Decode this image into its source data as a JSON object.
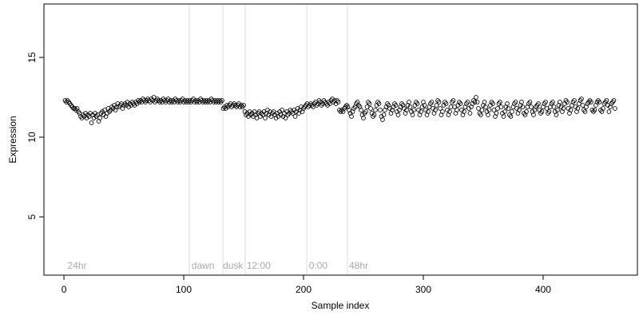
{
  "chart_data": {
    "type": "scatter",
    "xlabel": "Sample index",
    "ylabel": "Expression",
    "xlim": [
      -16.7,
      478.7
    ],
    "ylim": [
      1.35,
      18.35
    ],
    "xticks": [
      0,
      100,
      200,
      300,
      400
    ],
    "yticks": [
      5,
      10,
      15
    ],
    "point_color": "#000000",
    "vline_color": "#dddddd",
    "annotation_color": "#aaaaaa",
    "vlines": [
      104.7,
      132.7,
      151.3,
      202.7,
      236.7
    ],
    "annotations": [
      {
        "text": "24hr",
        "x": 3,
        "y": 1.95
      },
      {
        "text": "dawn",
        "x": 106.5,
        "y": 1.95
      },
      {
        "text": "dusk",
        "x": 132.7,
        "y": 1.95
      },
      {
        "text": "12:00",
        "x": 152.5,
        "y": 1.95
      },
      {
        "text": "0:00",
        "x": 204.5,
        "y": 1.95
      },
      {
        "text": "48hr",
        "x": 238,
        "y": 1.95
      }
    ],
    "x": [
      1,
      2,
      3,
      4,
      5,
      6,
      7,
      8,
      9,
      10,
      11,
      12,
      13,
      14,
      15,
      16,
      17,
      18,
      19,
      20,
      21,
      22,
      23,
      24,
      25,
      26,
      27,
      28,
      29,
      30,
      31,
      32,
      33,
      34,
      35,
      36,
      37,
      38,
      39,
      40,
      41,
      42,
      43,
      44,
      45,
      46,
      47,
      48,
      49,
      50,
      51,
      52,
      53,
      54,
      55,
      56,
      57,
      58,
      59,
      60,
      61,
      62,
      63,
      64,
      65,
      66,
      67,
      68,
      69,
      70,
      71,
      72,
      73,
      74,
      75,
      76,
      77,
      78,
      79,
      80,
      81,
      82,
      83,
      84,
      85,
      86,
      87,
      88,
      89,
      90,
      91,
      92,
      93,
      94,
      95,
      96,
      97,
      98,
      99,
      100,
      101,
      102,
      103,
      104,
      105,
      106,
      107,
      108,
      109,
      110,
      111,
      112,
      113,
      114,
      115,
      116,
      117,
      118,
      119,
      120,
      121,
      122,
      123,
      124,
      125,
      126,
      127,
      128,
      129,
      130,
      131,
      132,
      133,
      134,
      135,
      136,
      137,
      138,
      139,
      140,
      141,
      142,
      143,
      144,
      145,
      146,
      147,
      148,
      149,
      150,
      151,
      152,
      153,
      154,
      155,
      156,
      157,
      158,
      159,
      160,
      161,
      162,
      163,
      164,
      165,
      166,
      167,
      168,
      169,
      170,
      171,
      172,
      173,
      174,
      175,
      176,
      177,
      178,
      179,
      180,
      181,
      182,
      183,
      184,
      185,
      186,
      187,
      188,
      189,
      190,
      191,
      192,
      193,
      194,
      195,
      196,
      197,
      198,
      199,
      200,
      201,
      202,
      203,
      204,
      205,
      206,
      207,
      208,
      209,
      210,
      211,
      212,
      213,
      214,
      215,
      216,
      217,
      218,
      219,
      220,
      221,
      222,
      223,
      224,
      225,
      226,
      227,
      228,
      229,
      230,
      231,
      232,
      233,
      234,
      235,
      236,
      237,
      238,
      239,
      240,
      241,
      242,
      243,
      244,
      245,
      246,
      247,
      248,
      249,
      250,
      251,
      252,
      253,
      254,
      255,
      256,
      257,
      258,
      259,
      260,
      261,
      262,
      263,
      264,
      265,
      266,
      267,
      268,
      269,
      270,
      271,
      272,
      273,
      274,
      275,
      276,
      277,
      278,
      279,
      280,
      281,
      282,
      283,
      284,
      285,
      286,
      287,
      288,
      289,
      290,
      291,
      292,
      293,
      294,
      295,
      296,
      297,
      298,
      299,
      300,
      301,
      302,
      303,
      304,
      305,
      306,
      307,
      308,
      309,
      310,
      311,
      312,
      313,
      314,
      315,
      316,
      317,
      318,
      319,
      320,
      321,
      322,
      323,
      324,
      325,
      326,
      327,
      328,
      329,
      330,
      331,
      332,
      333,
      334,
      335,
      336,
      337,
      338,
      339,
      340,
      341,
      342,
      343,
      344,
      345,
      346,
      347,
      348,
      349,
      350,
      351,
      352,
      353,
      354,
      355,
      356,
      357,
      358,
      359,
      360,
      361,
      362,
      363,
      364,
      365,
      366,
      367,
      368,
      369,
      370,
      371,
      372,
      373,
      374,
      375,
      376,
      377,
      378,
      379,
      380,
      381,
      382,
      383,
      384,
      385,
      386,
      387,
      388,
      389,
      390,
      391,
      392,
      393,
      394,
      395,
      396,
      397,
      398,
      399,
      400,
      401,
      402,
      403,
      404,
      405,
      406,
      407,
      408,
      409,
      410,
      411,
      412,
      413,
      414,
      415,
      416,
      417,
      418,
      419,
      420,
      421,
      422,
      423,
      424,
      425,
      426,
      427,
      428,
      429,
      430,
      431,
      432,
      433,
      434,
      435,
      436,
      437,
      438,
      439,
      440,
      441,
      442,
      443,
      444,
      445,
      446,
      447,
      448,
      449,
      450,
      451,
      452,
      453,
      454,
      455,
      456,
      457,
      458,
      459,
      460
    ],
    "values": [
      12.3,
      12.2,
      12.3,
      12.2,
      12.1,
      12.0,
      11.9,
      11.8,
      11.8,
      11.7,
      11.8,
      11.6,
      11.5,
      11.3,
      11.2,
      11.4,
      11.3,
      11.5,
      11.2,
      11.4,
      11.3,
      11.5,
      10.9,
      11.4,
      11.2,
      11.5,
      11.3,
      11.4,
      11.0,
      11.2,
      11.5,
      11.6,
      11.4,
      11.7,
      11.3,
      11.5,
      11.8,
      11.6,
      11.7,
      11.9,
      11.8,
      12.0,
      11.7,
      11.9,
      12.1,
      11.9,
      12.0,
      12.1,
      11.8,
      12.0,
      12.1,
      12.0,
      12.2,
      11.9,
      12.1,
      12.0,
      12.2,
      12.1,
      12.0,
      12.2,
      12.1,
      12.3,
      12.2,
      12.3,
      12.2,
      12.4,
      12.3,
      12.2,
      12.3,
      12.4,
      12.3,
      12.2,
      12.4,
      12.3,
      12.5,
      12.2,
      12.3,
      12.4,
      12.3,
      12.2,
      12.3,
      12.2,
      12.4,
      12.3,
      12.2,
      12.3,
      12.4,
      12.2,
      12.3,
      12.2,
      12.3,
      12.2,
      12.4,
      12.3,
      12.2,
      12.3,
      12.2,
      12.3,
      12.4,
      12.2,
      12.3,
      12.2,
      12.3,
      12.2,
      12.3,
      12.2,
      12.3,
      12.4,
      12.2,
      12.3,
      12.2,
      12.3,
      12.2,
      12.4,
      12.3,
      12.2,
      12.3,
      12.2,
      12.3,
      12.2,
      12.3,
      12.2,
      12.4,
      12.3,
      12.2,
      12.3,
      12.2,
      12.3,
      12.2,
      12.3,
      12.2,
      12.3,
      11.8,
      11.9,
      11.8,
      12.0,
      11.9,
      12.0,
      12.1,
      11.9,
      12.0,
      12.1,
      12.0,
      11.9,
      12.0,
      12.1,
      11.9,
      12.0,
      11.9,
      12.0,
      11.6,
      11.4,
      11.5,
      11.3,
      11.6,
      11.4,
      11.5,
      11.3,
      11.6,
      11.4,
      11.2,
      11.5,
      11.6,
      11.3,
      11.5,
      11.4,
      11.6,
      11.2,
      11.5,
      11.7,
      11.4,
      11.6,
      11.3,
      11.5,
      11.6,
      11.4,
      11.2,
      11.5,
      11.3,
      11.6,
      11.4,
      11.7,
      11.3,
      11.5,
      11.2,
      11.6,
      11.4,
      11.5,
      11.7,
      11.6,
      11.5,
      11.7,
      11.3,
      11.6,
      11.8,
      11.5,
      11.7,
      11.9,
      11.6,
      11.8,
      11.9,
      12.0,
      12.1,
      11.9,
      12.0,
      12.1,
      12.0,
      11.9,
      12.1,
      12.2,
      12.0,
      12.1,
      12.3,
      12.2,
      12.0,
      12.1,
      12.3,
      12.2,
      12.1,
      12.0,
      12.2,
      12.1,
      12.3,
      12.4,
      12.2,
      12.3,
      12.1,
      12.3,
      12.2,
      11.7,
      11.6,
      11.7,
      11.6,
      11.8,
      11.9,
      12.0,
      11.9,
      11.7,
      11.5,
      11.3,
      11.6,
      11.8,
      11.9,
      12.1,
      12.2,
      12.0,
      11.9,
      11.7,
      11.4,
      11.2,
      11.5,
      11.6,
      11.9,
      12.2,
      12.1,
      11.8,
      11.5,
      11.3,
      11.4,
      11.7,
      12.0,
      12.2,
      12.1,
      11.7,
      11.3,
      11.1,
      11.4,
      11.7,
      11.9,
      12.1,
      12.0,
      11.8,
      11.5,
      11.7,
      11.9,
      12.1,
      12.0,
      11.6,
      11.4,
      11.7,
      11.9,
      12.1,
      12.0,
      11.8,
      11.5,
      11.7,
      12.0,
      12.2,
      11.9,
      11.6,
      11.4,
      11.7,
      12.0,
      12.2,
      12.1,
      11.7,
      11.4,
      11.6,
      11.9,
      12.2,
      12.0,
      11.7,
      11.4,
      11.6,
      11.9,
      12.1,
      12.2,
      11.8,
      11.5,
      11.7,
      12.0,
      12.3,
      12.2,
      11.8,
      11.4,
      11.6,
      12.0,
      12.2,
      12.1,
      11.7,
      11.4,
      11.6,
      11.9,
      12.2,
      12.3,
      11.9,
      11.5,
      11.7,
      12.0,
      12.2,
      12.1,
      11.7,
      11.4,
      11.6,
      11.9,
      12.1,
      12.2,
      11.8,
      11.5,
      11.9,
      12.1,
      12.3,
      12.2,
      12.5,
      12.2,
      11.8,
      11.5,
      11.4,
      11.7,
      12.0,
      12.2,
      11.9,
      11.6,
      11.4,
      11.7,
      12.0,
      12.2,
      12.1,
      11.7,
      11.3,
      11.5,
      11.8,
      12.1,
      12.2,
      11.9,
      11.5,
      11.3,
      11.6,
      11.9,
      12.1,
      11.8,
      11.4,
      11.3,
      11.6,
      11.9,
      12.1,
      12.2,
      11.8,
      11.5,
      11.7,
      12.0,
      12.2,
      11.9,
      11.5,
      11.4,
      11.6,
      11.9,
      12.1,
      12.2,
      11.9,
      11.6,
      11.4,
      11.7,
      11.9,
      12.0,
      12.1,
      11.7,
      11.5,
      11.6,
      11.9,
      12.1,
      12.2,
      11.8,
      11.5,
      11.6,
      11.9,
      12.1,
      12.2,
      11.9,
      11.6,
      11.4,
      11.7,
      12.0,
      12.2,
      11.9,
      11.6,
      11.8,
      12.1,
      12.3,
      12.2,
      11.8,
      11.5,
      11.7,
      12.0,
      12.2,
      12.3,
      11.9,
      11.6,
      11.8,
      12.1,
      12.3,
      12.4,
      12.0,
      11.7,
      11.6,
      11.9,
      12.1,
      12.2,
      12.3,
      12.2,
      11.7,
      11.6,
      11.7,
      12.0,
      12.2,
      12.3,
      12.2,
      11.7,
      11.6,
      11.8,
      12.1,
      12.2,
      12.3,
      12.0,
      11.6,
      11.9,
      12.1,
      12.2,
      12.3,
      11.8
    ]
  }
}
